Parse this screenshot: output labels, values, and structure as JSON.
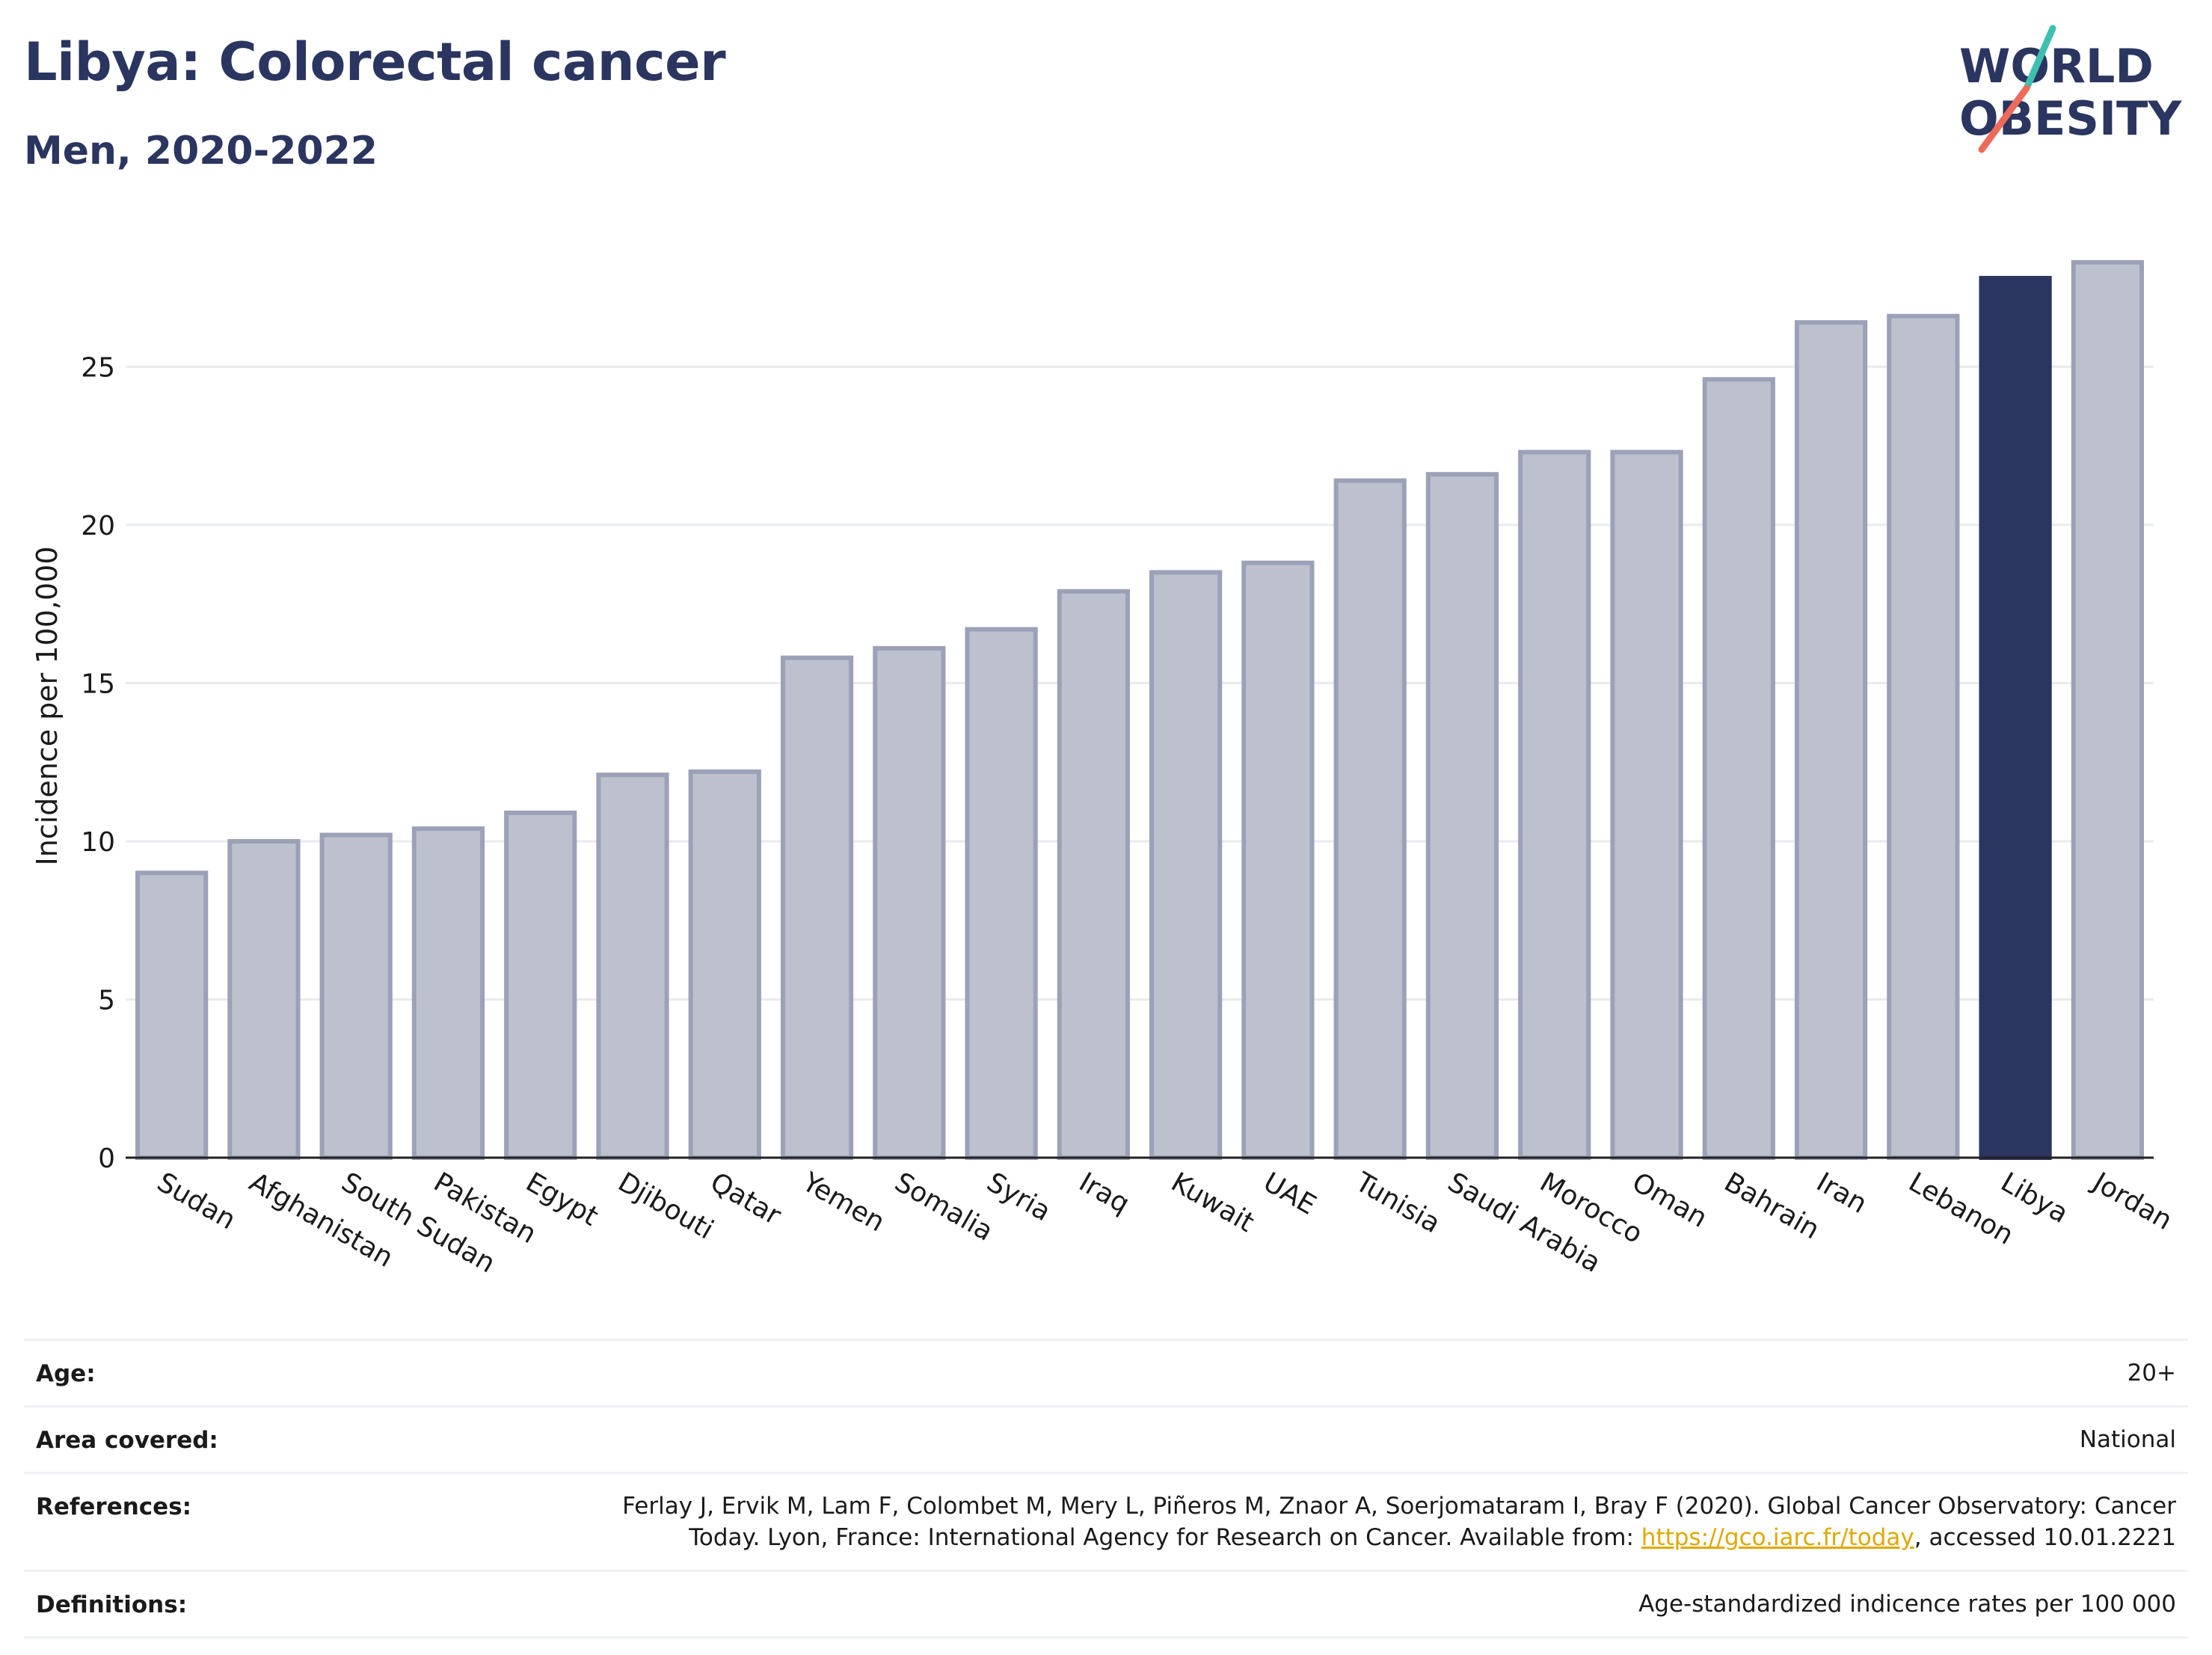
{
  "header": {
    "title": "Libya: Colorectal cancer",
    "subtitle": "Men, 2020-2022"
  },
  "logo": {
    "line1": "WORLD",
    "line2": "OBESITY"
  },
  "colors": {
    "highlight": "#2a3560",
    "bar_fill": "#bdc1ce",
    "bar_stroke": "#9ba1b7",
    "grid": "#e8eaee"
  },
  "chart_data": {
    "type": "bar",
    "categories": [
      "Sudan",
      "Afghanistan",
      "South Sudan",
      "Pakistan",
      "Egypt",
      "Djibouti",
      "Qatar",
      "Yemen",
      "Somalia",
      "Syria",
      "Iraq",
      "Kuwait",
      "UAE",
      "Tunisia",
      "Saudi Arabia",
      "Morocco",
      "Oman",
      "Bahrain",
      "Iran",
      "Lebanon",
      "Libya",
      "Jordan"
    ],
    "values": [
      9.0,
      10.0,
      10.2,
      10.4,
      10.9,
      12.1,
      12.2,
      15.8,
      16.1,
      16.7,
      17.9,
      18.5,
      18.8,
      21.4,
      21.6,
      22.3,
      22.3,
      24.6,
      26.4,
      26.6,
      27.8,
      28.3
    ],
    "highlight": "Libya",
    "ylabel": "Incidence per 100,000",
    "yticks": [
      0,
      5,
      10,
      15,
      20,
      25
    ],
    "ylim": [
      0,
      29.5
    ],
    "grid": true
  },
  "info": {
    "rows": [
      {
        "label": "Age:",
        "value": "20+"
      },
      {
        "label": "Area covered:",
        "value": "National"
      },
      {
        "label": "References:",
        "value": "Ferlay J, Ervik M, Lam F, Colombet M, Mery L, Piñeros M, Znaor A, Soerjomataram I, Bray F (2020). Global Cancer Observatory: Cancer Today. Lyon, France: International Agency for Research on Cancer. Available from: ",
        "link": "https://gco.iarc.fr/today",
        "suffix": ", accessed 10.01.2221"
      },
      {
        "label": "Definitions:",
        "value": "Age-standardized indicence rates per 100 000"
      }
    ]
  }
}
